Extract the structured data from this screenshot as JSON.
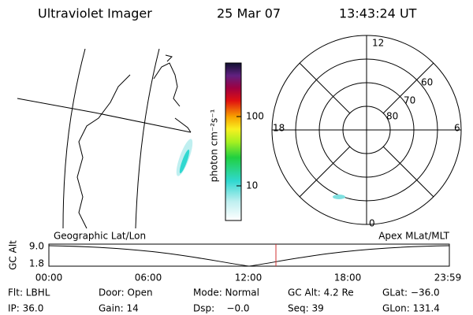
{
  "header": {
    "title": "Ultraviolet Imager",
    "date": "25 Mar 07",
    "time": "13:43:24 UT"
  },
  "colorbar": {
    "label": "photon cm⁻²s⁻¹",
    "ticks": [
      "100",
      "10"
    ]
  },
  "polar": {
    "mlt_labels": [
      "12",
      "18",
      "6",
      "0"
    ],
    "lat_labels": [
      "60",
      "70",
      "80"
    ]
  },
  "timeline": {
    "axis_label": "GC Alt",
    "left_title": "Geographic Lat/Lon",
    "right_title": "Apex MLat/MLT",
    "yticks": [
      "9.0",
      "1.8"
    ],
    "xticks": [
      "00:00",
      "06:00",
      "12:00",
      "18:00",
      "23:59"
    ]
  },
  "footer": {
    "rows": [
      [
        "Flt: LBHL",
        "Door: Open",
        "Mode: Normal",
        "GC Alt: 4.2 Re",
        "GLat: −36.0"
      ],
      [
        "IP: 36.0",
        "Gain: 14",
        "Dsp:    −0.0",
        "Seq: 39",
        "GLon: 131.4"
      ]
    ]
  }
}
